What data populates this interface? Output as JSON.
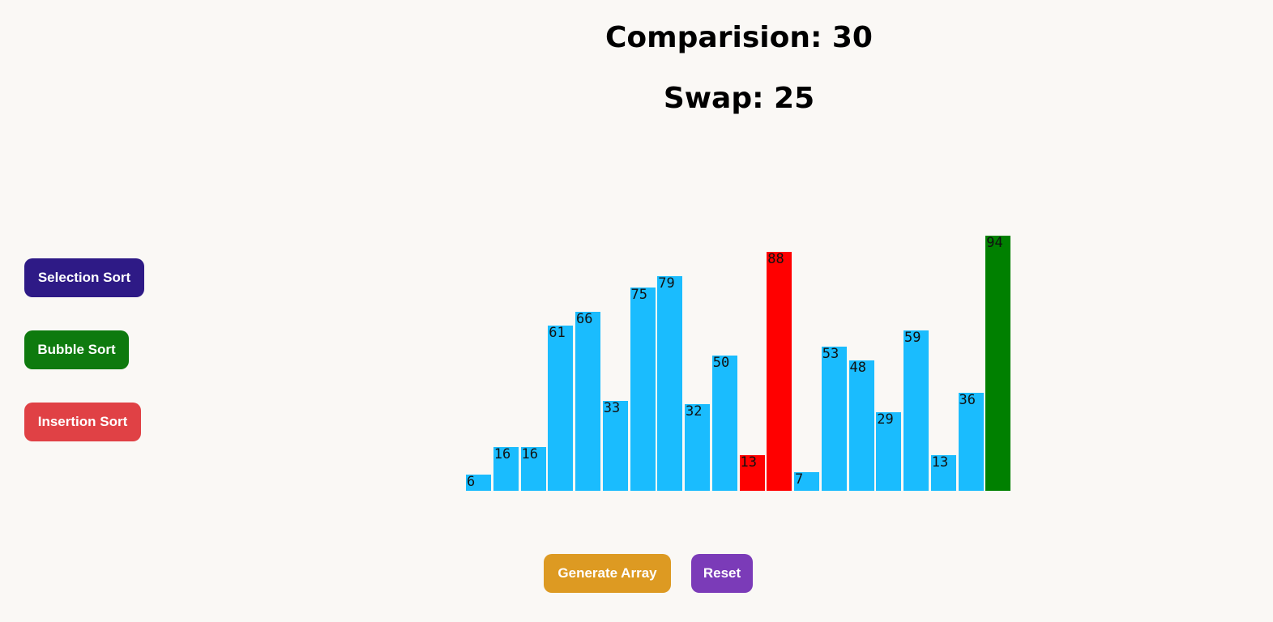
{
  "stats": {
    "comparisons_text": "Comparision: 30",
    "swaps_text": "Swap: 25"
  },
  "sort_buttons": {
    "selection": "Selection Sort",
    "bubble": "Bubble Sort",
    "insertion": "Insertion Sort"
  },
  "controls": {
    "generate": "Generate Array",
    "reset": "Reset"
  },
  "colors": {
    "default_bar": "#1abcfe",
    "comparing_bar": "#ff0000",
    "sorted_bar": "#008000",
    "selection_button": "#2e1a86",
    "bubble_button": "#0e7a0e",
    "insertion_button": "#e04145",
    "generate_button": "#dd9a22",
    "reset_button": "#7b3bb8"
  },
  "array": {
    "values": [
      6,
      16,
      16,
      61,
      66,
      33,
      75,
      79,
      32,
      50,
      13,
      88,
      7,
      53,
      48,
      29,
      59,
      13,
      36,
      94
    ],
    "states": [
      "default",
      "default",
      "default",
      "default",
      "default",
      "default",
      "default",
      "default",
      "default",
      "default",
      "comparing",
      "comparing",
      "default",
      "default",
      "default",
      "default",
      "default",
      "default",
      "default",
      "sorted"
    ]
  }
}
